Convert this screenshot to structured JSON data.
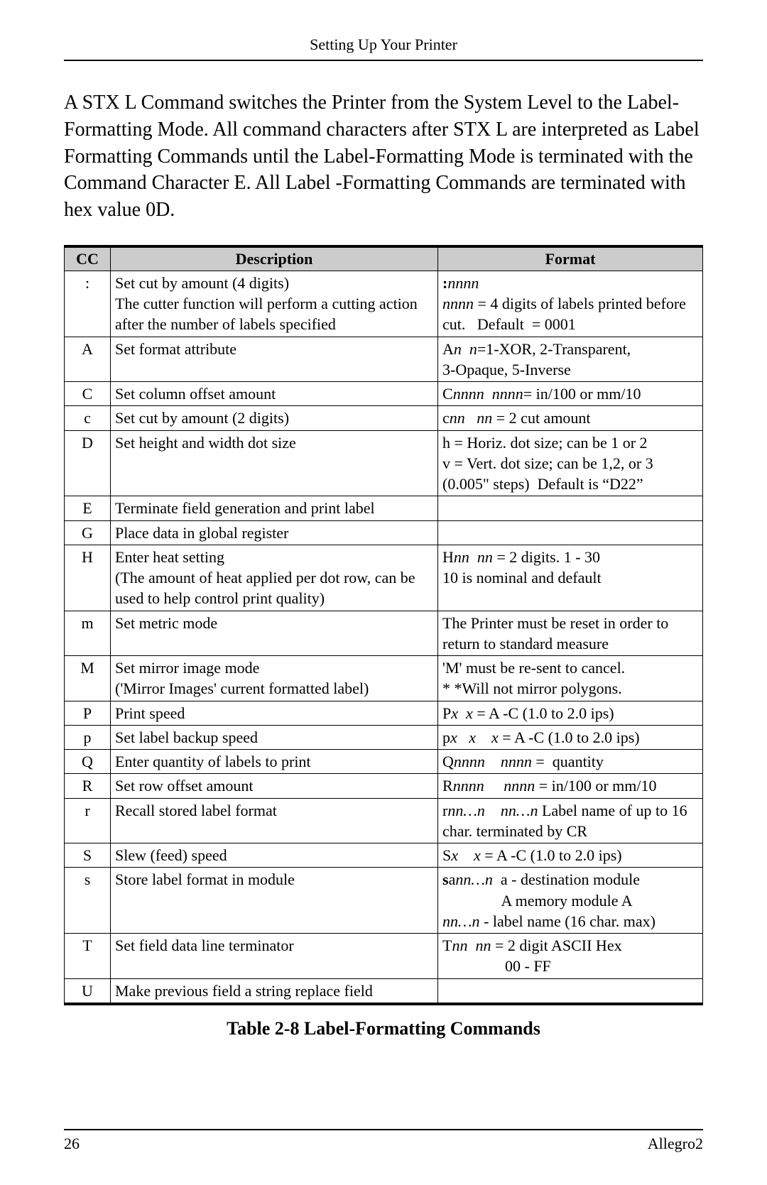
{
  "header": {
    "title": "Setting Up Your Printer"
  },
  "intro": {
    "text": "A STX L Command switches the Printer from the System Level to the Label-Formatting Mode.  All command characters after STX L are interpreted as Label Formatting Commands until the Label-Formatting Mode is terminated with the Command Character E.  All Label -Formatting Commands are terminated with hex value 0D."
  },
  "table": {
    "columns": {
      "cc": "CC",
      "description": "Description",
      "format": "Format"
    },
    "rows": [
      {
        "cc": ":",
        "desc": "Set cut by amount  (4 digits)\nThe cutter function will perform a cutting action after the number of labels specified",
        "fmt": "<span class='bold'>:</span><span class='ital'>nnnn</span><br><span class='ital'>nnnn</span> = 4 digits of labels printed before cut.&nbsp;&nbsp;&nbsp;Default&nbsp; = 0001"
      },
      {
        "cc": "A",
        "desc": "Set format attribute",
        "fmt": "A<span class='ital'>n&nbsp;&nbsp;n</span>=1-XOR, 2-Transparent,<br>3-Opaque, 5-Inverse"
      },
      {
        "cc": "C",
        "desc": "Set column offset amount",
        "fmt": "C<span class='ital'>nnnn&nbsp;&nbsp;nnnn</span>= in/100 or mm/10"
      },
      {
        "cc": "c",
        "desc": "Set cut by amount  (2 digits)",
        "fmt": "c<span class='ital'>nn&nbsp;&nbsp;&nbsp;nn</span> = 2 cut amount"
      },
      {
        "cc": "D",
        "desc": "Set height and width dot size",
        "fmt": "h = Horiz. dot size; can be 1 or 2<br>v = Vert. dot size; can be 1,2, or 3<br>(0.005&quot; steps)&nbsp;&nbsp;Default is &ldquo;D22&rdquo;"
      },
      {
        "cc": "E",
        "desc": "Terminate field generation and print label",
        "fmt": ""
      },
      {
        "cc": "G",
        "desc": "Place data in global register",
        "fmt": ""
      },
      {
        "cc": "H",
        "desc": "Enter heat setting\n(The amount of heat applied per dot row, can be used to help control print quality)",
        "fmt": "H<span class='ital'>nn&nbsp;&nbsp;nn</span> = 2 digits. 1 - 30<br>10 is nominal and default"
      },
      {
        "cc": "m",
        "desc": "Set metric mode",
        "fmt": "The Printer must be reset in order to return to standard measure"
      },
      {
        "cc": "M",
        "desc": "Set mirror image mode\n('Mirror Images' current formatted label)",
        "fmt": "'M' must be re-sent to cancel.<br>* *Will not mirror polygons."
      },
      {
        "cc": "P",
        "desc": "Print speed",
        "fmt": "P<span class='ital'>x&nbsp;&nbsp;x</span> = A -C (1.0 to 2.0 ips)"
      },
      {
        "cc": "p",
        "desc": "Set label backup speed",
        "fmt": "p<span class='ital'>x&nbsp;&nbsp;&nbsp;x&nbsp;&nbsp;&nbsp;&nbsp;x</span> = A -C (1.0 to 2.0 ips)"
      },
      {
        "cc": "Q",
        "desc": "Enter quantity of labels to print",
        "fmt": "Q<span class='ital'>nnnn&nbsp;&nbsp;&nbsp;&nbsp;nnnn</span> =&nbsp;&nbsp;quantity"
      },
      {
        "cc": "R",
        "desc": "Set row offset amount",
        "fmt": "R<span class='ital'>nnnn&nbsp;&nbsp;&nbsp;&nbsp;&nbsp;nnnn</span> = in/100 or mm/10"
      },
      {
        "cc": "r",
        "desc": "Recall stored label format",
        "fmt": "r<span class='ital'>nn&hellip;n&nbsp;&nbsp;&nbsp;&nbsp;nn&hellip;n</span> Label name of up to 16 char. terminated by CR"
      },
      {
        "cc": "S",
        "desc": "Slew (feed) speed",
        "fmt": "S<span class='ital'>x&nbsp;&nbsp;&nbsp;&nbsp;x</span> = A -C (1.0 to 2.0 ips)"
      },
      {
        "cc": "s",
        "desc": "Store label format in module",
        "fmt": "<span class='bold'>s</span>a<span class='ital'>nn&hellip;n</span>&nbsp;&nbsp;a - destination module<br>&nbsp;&nbsp;&nbsp;&nbsp;&nbsp;&nbsp;&nbsp;&nbsp;&nbsp;&nbsp;&nbsp;&nbsp;&nbsp;&nbsp;&nbsp;A memory module A<br><span class='ital'>nn&hellip;n</span> - label name (16 char. max)"
      },
      {
        "cc": "T",
        "desc": "Set field data line terminator",
        "fmt": "T<span class='ital'>nn&nbsp;&nbsp;nn</span> = 2 digit ASCII Hex<br>&nbsp;&nbsp;&nbsp;&nbsp;&nbsp;&nbsp;&nbsp;&nbsp;&nbsp;&nbsp;&nbsp;&nbsp;&nbsp;&nbsp;&nbsp;&nbsp;00 - FF"
      },
      {
        "cc": "U",
        "desc": "Make previous field a string replace field",
        "fmt": ""
      }
    ]
  },
  "caption": "Table 2-8   Label-Formatting Commands",
  "footer": {
    "page": "26",
    "doc": "Allegro2"
  }
}
